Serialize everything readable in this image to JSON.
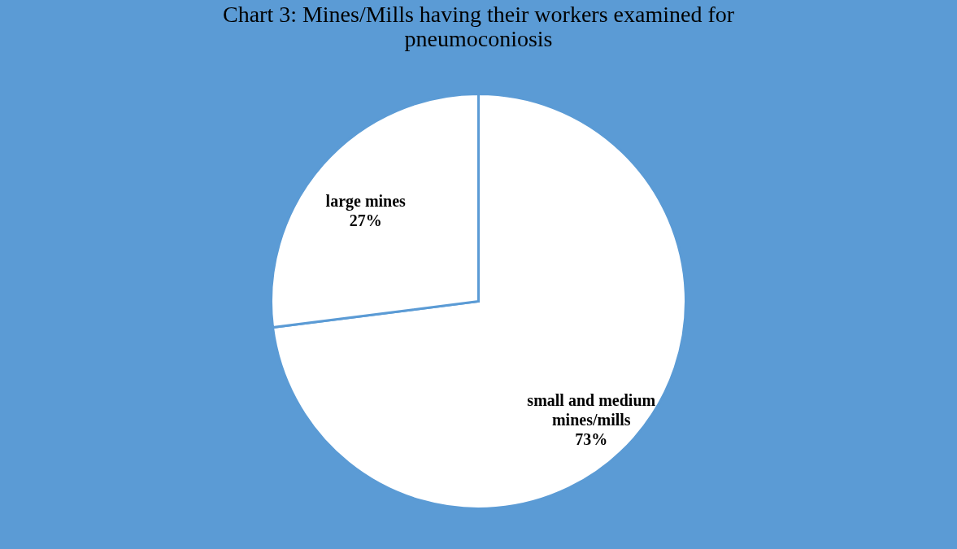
{
  "chart_data": {
    "type": "pie",
    "title": "Chart 3: Mines/Mills having their workers examined for pneumoconiosis",
    "categories": [
      "small and medium mines/mills",
      "large mines"
    ],
    "values": [
      73,
      27
    ],
    "colors": [
      "#ffffff",
      "#ffffff"
    ],
    "value_labels": [
      "73%",
      "27%"
    ],
    "legend": false
  }
}
